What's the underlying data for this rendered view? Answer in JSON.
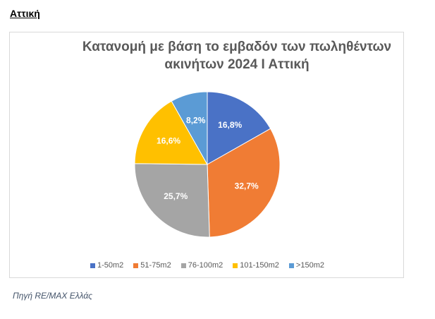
{
  "heading": "Αττική",
  "chart_data": {
    "type": "pie",
    "title": "Κατανομή με βάση το εμβαδόν των πωληθέντων ακινήτων 2024 Ι Αττική",
    "categories": [
      "1-50m2",
      "51-75m2",
      "76-100m2",
      "101-150m2",
      ">150m2"
    ],
    "values": [
      16.8,
      32.7,
      25.7,
      16.6,
      8.2
    ],
    "value_labels": [
      "16,8%",
      "32,7%",
      "25,7%",
      "16,6%",
      "8,2%"
    ],
    "colors": [
      "#4a72c6",
      "#f07c34",
      "#a5a5a5",
      "#ffc000",
      "#5b9bd5"
    ],
    "legend": "bottom"
  },
  "source": "Πηγή RE/MAX Ελλάς"
}
